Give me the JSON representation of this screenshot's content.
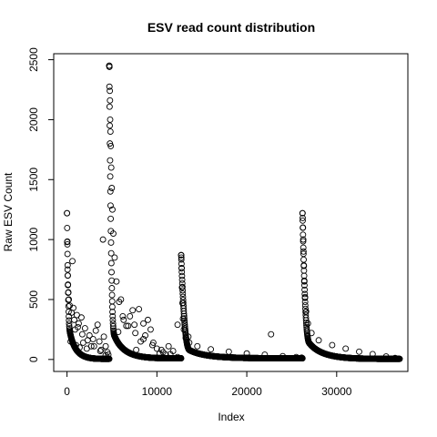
{
  "chart_data": {
    "type": "scatter",
    "title": "ESV read count distribution",
    "xlabel": "Index",
    "ylabel": "Raw ESV Count",
    "xlim": [
      -1480,
      37920
    ],
    "ylim": [
      -100,
      2550
    ],
    "xticks": [
      0,
      10000,
      20000,
      30000
    ],
    "yticks": [
      0,
      500,
      1000,
      1500,
      2000,
      2500
    ],
    "marker": "open-circle",
    "grid": false,
    "legend": "none",
    "segments": [
      {
        "start": 0,
        "end": 4700,
        "peak": 1220,
        "knee": 400,
        "floor": 5
      },
      {
        "start": 4700,
        "end": 12700,
        "peak": 2450,
        "knee": 350,
        "floor": 10
      },
      {
        "start": 12700,
        "end": 26200,
        "peak": 870,
        "knee": 130,
        "floor": 10
      },
      {
        "start": 26200,
        "end": 37000,
        "peak": 1220,
        "knee": 240,
        "floor": 5
      }
    ],
    "curve_points": [
      {
        "x": 0,
        "y": 1220
      },
      {
        "x": 20,
        "y": 980
      },
      {
        "x": 40,
        "y": 960
      },
      {
        "x": 60,
        "y": 750
      },
      {
        "x": 80,
        "y": 700
      },
      {
        "x": 100,
        "y": 620
      },
      {
        "x": 150,
        "y": 560
      },
      {
        "x": 200,
        "y": 500
      },
      {
        "x": 300,
        "y": 450
      },
      {
        "x": 500,
        "y": 390
      },
      {
        "x": 800,
        "y": 330
      },
      {
        "x": 1200,
        "y": 270
      },
      {
        "x": 1700,
        "y": 210
      },
      {
        "x": 2300,
        "y": 160
      },
      {
        "x": 3000,
        "y": 110
      },
      {
        "x": 3700,
        "y": 70
      },
      {
        "x": 4300,
        "y": 35
      },
      {
        "x": 4650,
        "y": 8
      },
      {
        "x": 4700,
        "y": 2450
      },
      {
        "x": 4720,
        "y": 2440
      },
      {
        "x": 4760,
        "y": 2240
      },
      {
        "x": 4780,
        "y": 2160
      },
      {
        "x": 4800,
        "y": 2000
      },
      {
        "x": 4830,
        "y": 1900
      },
      {
        "x": 4870,
        "y": 1780
      },
      {
        "x": 4920,
        "y": 1600
      },
      {
        "x": 4980,
        "y": 1430
      },
      {
        "x": 5050,
        "y": 1250
      },
      {
        "x": 5150,
        "y": 1050
      },
      {
        "x": 5300,
        "y": 850
      },
      {
        "x": 5500,
        "y": 650
      },
      {
        "x": 5800,
        "y": 480
      },
      {
        "x": 6200,
        "y": 360
      },
      {
        "x": 6800,
        "y": 280
      },
      {
        "x": 7600,
        "y": 220
      },
      {
        "x": 8500,
        "y": 170
      },
      {
        "x": 9500,
        "y": 120
      },
      {
        "x": 10500,
        "y": 80
      },
      {
        "x": 11500,
        "y": 45
      },
      {
        "x": 12300,
        "y": 20
      },
      {
        "x": 12700,
        "y": 870
      },
      {
        "x": 12720,
        "y": 850
      },
      {
        "x": 12750,
        "y": 760
      },
      {
        "x": 12790,
        "y": 600
      },
      {
        "x": 12840,
        "y": 470
      },
      {
        "x": 12900,
        "y": 340
      },
      {
        "x": 13000,
        "y": 250
      },
      {
        "x": 13200,
        "y": 180
      },
      {
        "x": 13600,
        "y": 140
      },
      {
        "x": 14500,
        "y": 110
      },
      {
        "x": 16000,
        "y": 85
      },
      {
        "x": 18000,
        "y": 65
      },
      {
        "x": 20000,
        "y": 50
      },
      {
        "x": 22000,
        "y": 40
      },
      {
        "x": 24000,
        "y": 28
      },
      {
        "x": 25500,
        "y": 20
      },
      {
        "x": 26100,
        "y": 15
      },
      {
        "x": 26200,
        "y": 1220
      },
      {
        "x": 26220,
        "y": 1180
      },
      {
        "x": 26250,
        "y": 1100
      },
      {
        "x": 26280,
        "y": 1000
      },
      {
        "x": 26310,
        "y": 900
      },
      {
        "x": 26350,
        "y": 780
      },
      {
        "x": 26400,
        "y": 650
      },
      {
        "x": 26480,
        "y": 520
      },
      {
        "x": 26600,
        "y": 400
      },
      {
        "x": 26800,
        "y": 300
      },
      {
        "x": 27200,
        "y": 220
      },
      {
        "x": 28000,
        "y": 160
      },
      {
        "x": 29500,
        "y": 120
      },
      {
        "x": 31000,
        "y": 90
      },
      {
        "x": 32500,
        "y": 65
      },
      {
        "x": 34000,
        "y": 45
      },
      {
        "x": 35500,
        "y": 25
      },
      {
        "x": 36500,
        "y": 12
      },
      {
        "x": 37000,
        "y": 5
      }
    ],
    "outlier_points": [
      {
        "x": 400,
        "y": 150
      },
      {
        "x": 600,
        "y": 820
      },
      {
        "x": 700,
        "y": 430
      },
      {
        "x": 900,
        "y": 250
      },
      {
        "x": 1000,
        "y": 120
      },
      {
        "x": 1100,
        "y": 370
      },
      {
        "x": 1300,
        "y": 300
      },
      {
        "x": 1400,
        "y": 100
      },
      {
        "x": 1600,
        "y": 350
      },
      {
        "x": 1800,
        "y": 140
      },
      {
        "x": 2000,
        "y": 260
      },
      {
        "x": 2200,
        "y": 90
      },
      {
        "x": 2500,
        "y": 200
      },
      {
        "x": 2700,
        "y": 110
      },
      {
        "x": 2900,
        "y": 170
      },
      {
        "x": 3200,
        "y": 240
      },
      {
        "x": 3400,
        "y": 290
      },
      {
        "x": 3600,
        "y": 150
      },
      {
        "x": 3800,
        "y": 80
      },
      {
        "x": 4000,
        "y": 1000
      },
      {
        "x": 4100,
        "y": 190
      },
      {
        "x": 4300,
        "y": 110
      },
      {
        "x": 4500,
        "y": 60
      },
      {
        "x": 4600,
        "y": 40
      },
      {
        "x": 5700,
        "y": 230
      },
      {
        "x": 6000,
        "y": 500
      },
      {
        "x": 6300,
        "y": 330
      },
      {
        "x": 6600,
        "y": 280
      },
      {
        "x": 7000,
        "y": 360
      },
      {
        "x": 7300,
        "y": 410
      },
      {
        "x": 7500,
        "y": 290
      },
      {
        "x": 7700,
        "y": 80
      },
      {
        "x": 8000,
        "y": 420
      },
      {
        "x": 8200,
        "y": 150
      },
      {
        "x": 8500,
        "y": 300
      },
      {
        "x": 8700,
        "y": 200
      },
      {
        "x": 9000,
        "y": 330
      },
      {
        "x": 9300,
        "y": 250
      },
      {
        "x": 9600,
        "y": 140
      },
      {
        "x": 10000,
        "y": 90
      },
      {
        "x": 10300,
        "y": 50
      },
      {
        "x": 10700,
        "y": 60
      },
      {
        "x": 11000,
        "y": 40
      },
      {
        "x": 11300,
        "y": 110
      },
      {
        "x": 11800,
        "y": 70
      },
      {
        "x": 12300,
        "y": 290
      },
      {
        "x": 13500,
        "y": 190
      },
      {
        "x": 22700,
        "y": 210
      }
    ]
  }
}
